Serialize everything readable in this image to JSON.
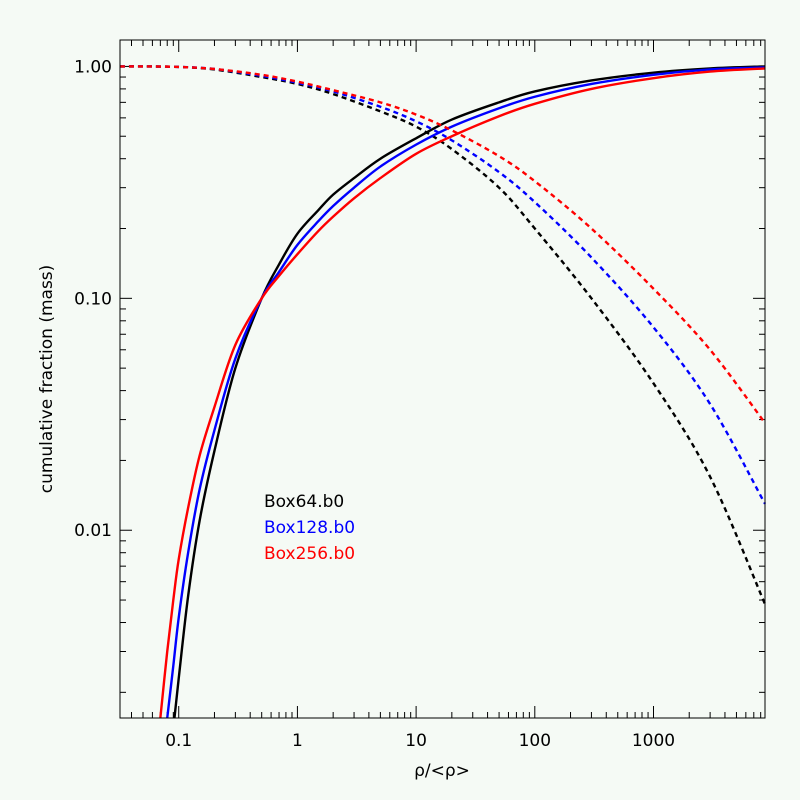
{
  "chart_data": {
    "type": "line",
    "xlabel": "ρ/<ρ>",
    "ylabel": "cumulative fraction (mass)",
    "xscale": "log",
    "yscale": "log",
    "xlim": [
      0.032,
      8700
    ],
    "ylim": [
      0.00155,
      1.3
    ],
    "grid": false,
    "legend_position": "lower-left",
    "x_ticks": [
      {
        "value": 0.1,
        "label": "0.1"
      },
      {
        "value": 1,
        "label": "1"
      },
      {
        "value": 10,
        "label": "10"
      },
      {
        "value": 100,
        "label": "100"
      },
      {
        "value": 1000,
        "label": "1000"
      }
    ],
    "y_ticks": [
      {
        "value": 0.01,
        "label": "0.01"
      },
      {
        "value": 0.1,
        "label": "0.10"
      },
      {
        "value": 1,
        "label": "1.00"
      }
    ],
    "series": [
      {
        "name": "Box64.b0",
        "color": "#000000",
        "solid": {
          "x": [
            0.092,
            0.1,
            0.12,
            0.15,
            0.2,
            0.3,
            0.5,
            0.7,
            1,
            1.5,
            2,
            3,
            5,
            10,
            20,
            50,
            100,
            300,
            1000,
            3000,
            8700
          ],
          "y": [
            0.00155,
            0.0023,
            0.0052,
            0.011,
            0.022,
            0.05,
            0.1,
            0.14,
            0.19,
            0.24,
            0.28,
            0.33,
            0.4,
            0.49,
            0.59,
            0.7,
            0.78,
            0.87,
            0.94,
            0.98,
            1.0
          ]
        },
        "dashed": {
          "x": [
            0.032,
            0.05,
            0.1,
            0.2,
            0.5,
            1,
            2,
            5,
            10,
            20,
            50,
            100,
            300,
            1000,
            3000,
            8700
          ],
          "y": [
            1.0,
            1.0,
            0.995,
            0.97,
            0.9,
            0.84,
            0.76,
            0.64,
            0.55,
            0.44,
            0.3,
            0.2,
            0.1,
            0.043,
            0.017,
            0.0048
          ]
        }
      },
      {
        "name": "Box128.b0",
        "color": "#0000ff",
        "solid": {
          "x": [
            0.08,
            0.09,
            0.1,
            0.12,
            0.15,
            0.2,
            0.3,
            0.5,
            0.7,
            1,
            1.5,
            2,
            3,
            5,
            10,
            20,
            50,
            100,
            300,
            1000,
            3000,
            8700
          ],
          "y": [
            0.00155,
            0.0026,
            0.0042,
            0.008,
            0.015,
            0.027,
            0.055,
            0.1,
            0.13,
            0.17,
            0.215,
            0.25,
            0.3,
            0.37,
            0.46,
            0.55,
            0.66,
            0.74,
            0.84,
            0.92,
            0.97,
            0.99
          ]
        },
        "dashed": {
          "x": [
            0.032,
            0.05,
            0.1,
            0.2,
            0.5,
            1,
            2,
            5,
            10,
            20,
            50,
            100,
            300,
            1000,
            3000,
            8700
          ],
          "y": [
            1.0,
            1.0,
            0.995,
            0.975,
            0.91,
            0.85,
            0.78,
            0.67,
            0.58,
            0.48,
            0.35,
            0.26,
            0.15,
            0.075,
            0.035,
            0.013
          ]
        }
      },
      {
        "name": "Box256.b0",
        "color": "#ff0000",
        "solid": {
          "x": [
            0.07,
            0.08,
            0.09,
            0.1,
            0.12,
            0.15,
            0.2,
            0.3,
            0.5,
            0.7,
            1,
            1.5,
            2,
            3,
            5,
            10,
            20,
            50,
            100,
            300,
            1000,
            3000,
            8700
          ],
          "y": [
            0.00155,
            0.003,
            0.005,
            0.0075,
            0.0125,
            0.021,
            0.034,
            0.063,
            0.1,
            0.125,
            0.155,
            0.195,
            0.225,
            0.27,
            0.33,
            0.42,
            0.5,
            0.61,
            0.69,
            0.8,
            0.89,
            0.95,
            0.98
          ]
        },
        "dashed": {
          "x": [
            0.032,
            0.05,
            0.1,
            0.2,
            0.5,
            1,
            2,
            5,
            10,
            20,
            50,
            100,
            300,
            1000,
            3000,
            8700
          ],
          "y": [
            1.0,
            1.0,
            0.995,
            0.975,
            0.92,
            0.86,
            0.79,
            0.7,
            0.62,
            0.53,
            0.41,
            0.32,
            0.2,
            0.11,
            0.06,
            0.029
          ]
        }
      }
    ]
  }
}
